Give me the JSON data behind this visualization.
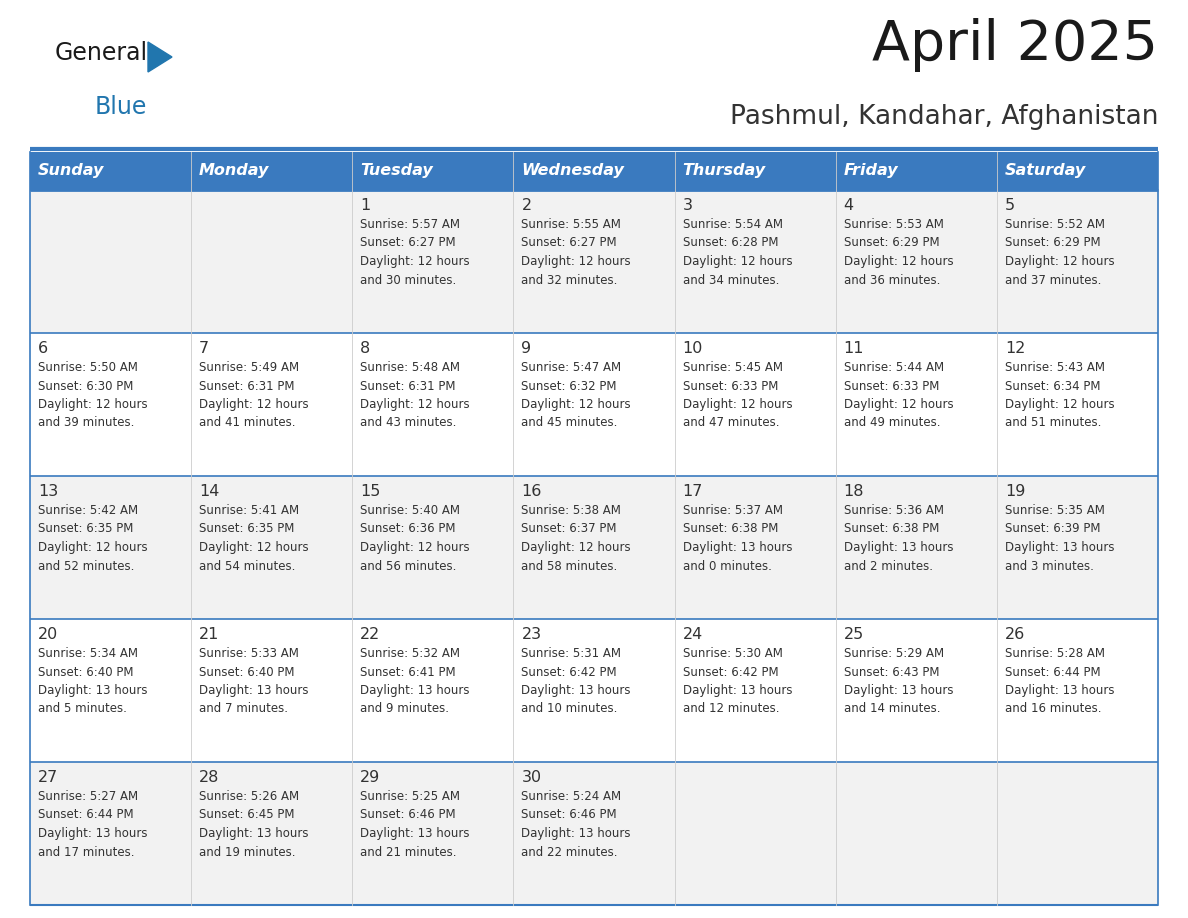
{
  "title": "April 2025",
  "subtitle": "Pashmul, Kandahar, Afghanistan",
  "days_of_week": [
    "Sunday",
    "Monday",
    "Tuesday",
    "Wednesday",
    "Thursday",
    "Friday",
    "Saturday"
  ],
  "header_bg": "#3a7abf",
  "header_text": "#ffffff",
  "border_color": "#3a7abf",
  "row_bg_odd": "#f2f2f2",
  "row_bg_even": "#ffffff",
  "cell_text_color": "#333333",
  "day_num_color": "#333333",
  "calendar_data": [
    [
      null,
      null,
      {
        "day": "1",
        "sunrise": "5:57 AM",
        "sunset": "6:27 PM",
        "daylight": "12 hours\nand 30 minutes."
      },
      {
        "day": "2",
        "sunrise": "5:55 AM",
        "sunset": "6:27 PM",
        "daylight": "12 hours\nand 32 minutes."
      },
      {
        "day": "3",
        "sunrise": "5:54 AM",
        "sunset": "6:28 PM",
        "daylight": "12 hours\nand 34 minutes."
      },
      {
        "day": "4",
        "sunrise": "5:53 AM",
        "sunset": "6:29 PM",
        "daylight": "12 hours\nand 36 minutes."
      },
      {
        "day": "5",
        "sunrise": "5:52 AM",
        "sunset": "6:29 PM",
        "daylight": "12 hours\nand 37 minutes."
      }
    ],
    [
      {
        "day": "6",
        "sunrise": "5:50 AM",
        "sunset": "6:30 PM",
        "daylight": "12 hours\nand 39 minutes."
      },
      {
        "day": "7",
        "sunrise": "5:49 AM",
        "sunset": "6:31 PM",
        "daylight": "12 hours\nand 41 minutes."
      },
      {
        "day": "8",
        "sunrise": "5:48 AM",
        "sunset": "6:31 PM",
        "daylight": "12 hours\nand 43 minutes."
      },
      {
        "day": "9",
        "sunrise": "5:47 AM",
        "sunset": "6:32 PM",
        "daylight": "12 hours\nand 45 minutes."
      },
      {
        "day": "10",
        "sunrise": "5:45 AM",
        "sunset": "6:33 PM",
        "daylight": "12 hours\nand 47 minutes."
      },
      {
        "day": "11",
        "sunrise": "5:44 AM",
        "sunset": "6:33 PM",
        "daylight": "12 hours\nand 49 minutes."
      },
      {
        "day": "12",
        "sunrise": "5:43 AM",
        "sunset": "6:34 PM",
        "daylight": "12 hours\nand 51 minutes."
      }
    ],
    [
      {
        "day": "13",
        "sunrise": "5:42 AM",
        "sunset": "6:35 PM",
        "daylight": "12 hours\nand 52 minutes."
      },
      {
        "day": "14",
        "sunrise": "5:41 AM",
        "sunset": "6:35 PM",
        "daylight": "12 hours\nand 54 minutes."
      },
      {
        "day": "15",
        "sunrise": "5:40 AM",
        "sunset": "6:36 PM",
        "daylight": "12 hours\nand 56 minutes."
      },
      {
        "day": "16",
        "sunrise": "5:38 AM",
        "sunset": "6:37 PM",
        "daylight": "12 hours\nand 58 minutes."
      },
      {
        "day": "17",
        "sunrise": "5:37 AM",
        "sunset": "6:38 PM",
        "daylight": "13 hours\nand 0 minutes."
      },
      {
        "day": "18",
        "sunrise": "5:36 AM",
        "sunset": "6:38 PM",
        "daylight": "13 hours\nand 2 minutes."
      },
      {
        "day": "19",
        "sunrise": "5:35 AM",
        "sunset": "6:39 PM",
        "daylight": "13 hours\nand 3 minutes."
      }
    ],
    [
      {
        "day": "20",
        "sunrise": "5:34 AM",
        "sunset": "6:40 PM",
        "daylight": "13 hours\nand 5 minutes."
      },
      {
        "day": "21",
        "sunrise": "5:33 AM",
        "sunset": "6:40 PM",
        "daylight": "13 hours\nand 7 minutes."
      },
      {
        "day": "22",
        "sunrise": "5:32 AM",
        "sunset": "6:41 PM",
        "daylight": "13 hours\nand 9 minutes."
      },
      {
        "day": "23",
        "sunrise": "5:31 AM",
        "sunset": "6:42 PM",
        "daylight": "13 hours\nand 10 minutes."
      },
      {
        "day": "24",
        "sunrise": "5:30 AM",
        "sunset": "6:42 PM",
        "daylight": "13 hours\nand 12 minutes."
      },
      {
        "day": "25",
        "sunrise": "5:29 AM",
        "sunset": "6:43 PM",
        "daylight": "13 hours\nand 14 minutes."
      },
      {
        "day": "26",
        "sunrise": "5:28 AM",
        "sunset": "6:44 PM",
        "daylight": "13 hours\nand 16 minutes."
      }
    ],
    [
      {
        "day": "27",
        "sunrise": "5:27 AM",
        "sunset": "6:44 PM",
        "daylight": "13 hours\nand 17 minutes."
      },
      {
        "day": "28",
        "sunrise": "5:26 AM",
        "sunset": "6:45 PM",
        "daylight": "13 hours\nand 19 minutes."
      },
      {
        "day": "29",
        "sunrise": "5:25 AM",
        "sunset": "6:46 PM",
        "daylight": "13 hours\nand 21 minutes."
      },
      {
        "day": "30",
        "sunrise": "5:24 AM",
        "sunset": "6:46 PM",
        "daylight": "13 hours\nand 22 minutes."
      },
      null,
      null,
      null
    ]
  ],
  "logo_general_color": "#1a1a1a",
  "logo_blue_color": "#2176ae",
  "logo_triangle_color": "#2176ae",
  "title_color": "#1a1a1a",
  "subtitle_color": "#333333"
}
